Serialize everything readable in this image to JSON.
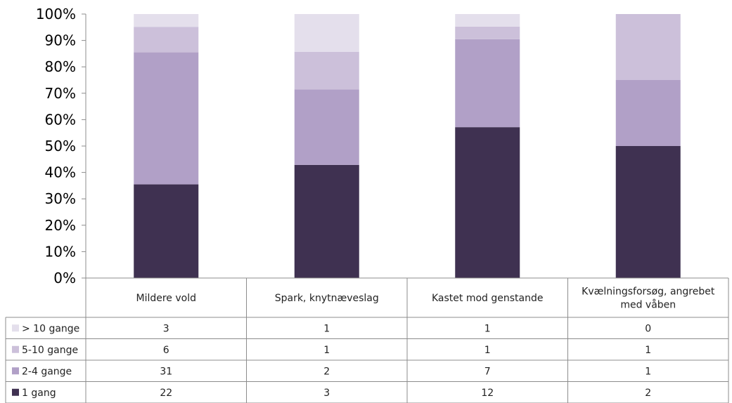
{
  "chart_data": {
    "type": "bar",
    "stacked": true,
    "percent_stacked": true,
    "categories": [
      [
        "Mildere vold"
      ],
      [
        "Spark, knytnæveslag"
      ],
      [
        "Kastet mod genstande"
      ],
      [
        "Kvælningsforsøg, angrebet",
        "med våben"
      ]
    ],
    "series": [
      {
        "name": "1 gang",
        "values": [
          22,
          3,
          12,
          2
        ],
        "color": "#3f3151"
      },
      {
        "name": "2-4 gange",
        "values": [
          31,
          2,
          7,
          1
        ],
        "color": "#b1a0c7"
      },
      {
        "name": "5-10 gange",
        "values": [
          6,
          1,
          1,
          1
        ],
        "color": "#ccc0da"
      },
      {
        "name": "> 10 gange",
        "values": [
          3,
          1,
          1,
          0
        ],
        "color": "#e4dfec"
      }
    ],
    "table_row_order": [
      "> 10 gange",
      "5-10 gange",
      "2-4 gange",
      "1 gang"
    ],
    "yticks": [
      "0%",
      "10%",
      "20%",
      "30%",
      "40%",
      "50%",
      "60%",
      "70%",
      "80%",
      "90%",
      "100%"
    ],
    "ylim": [
      0,
      100
    ],
    "grid": false,
    "legend": "data-table-left"
  }
}
